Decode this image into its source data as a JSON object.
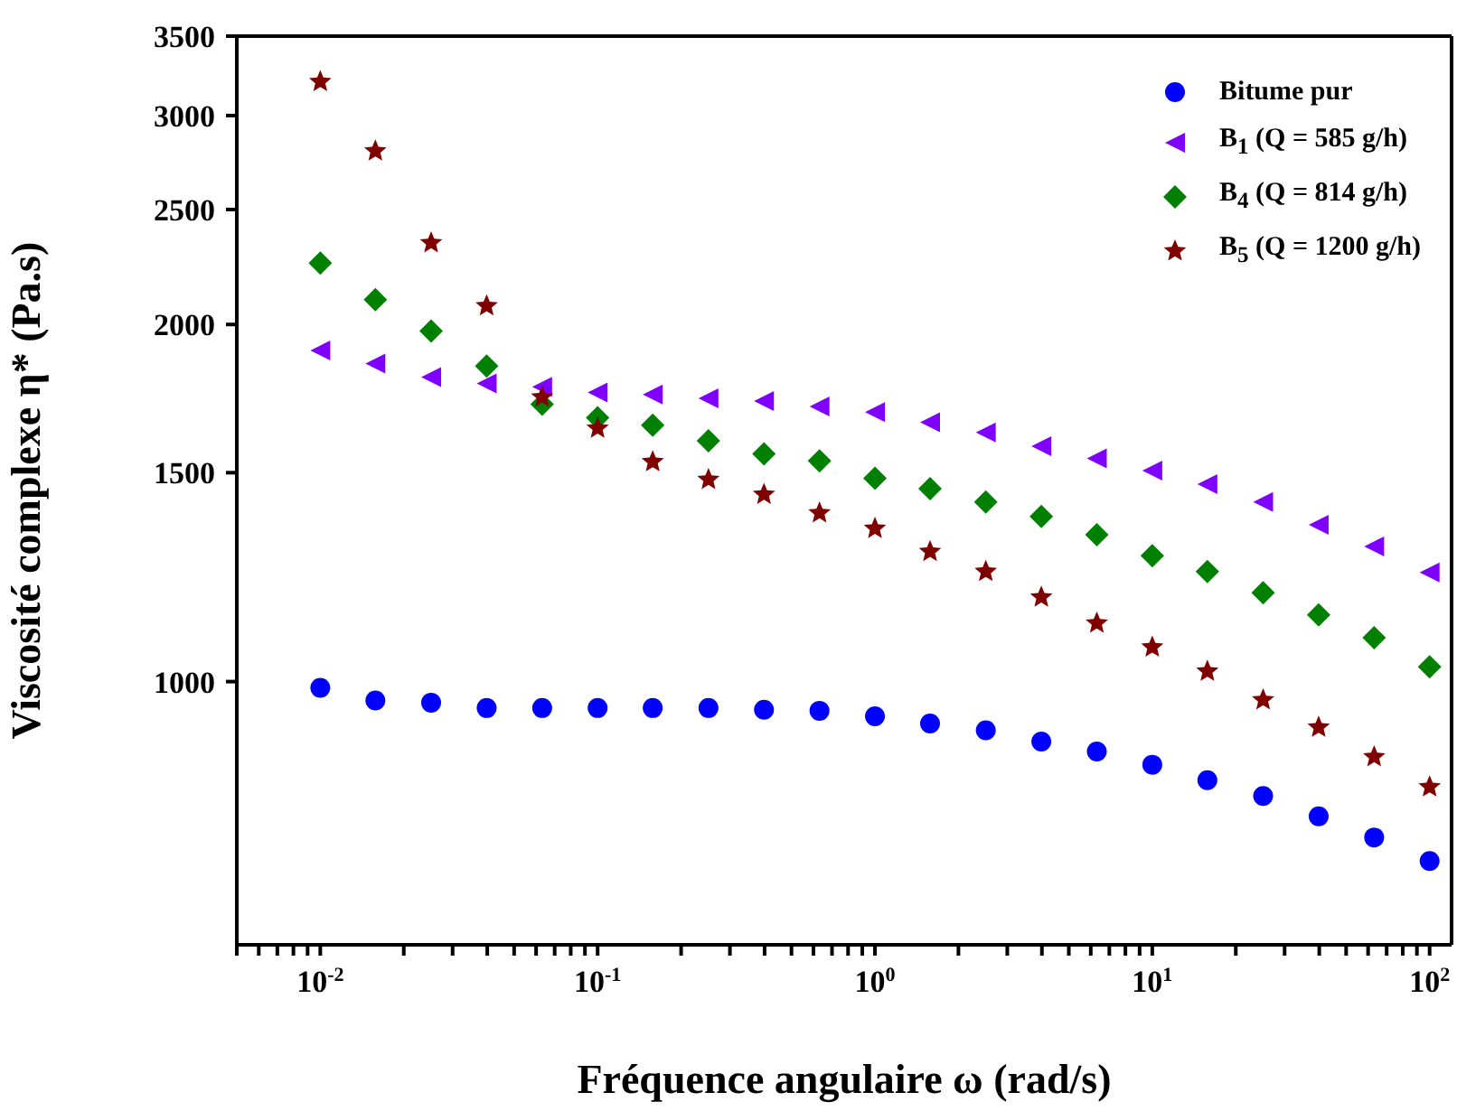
{
  "chart_data": {
    "type": "scatter",
    "xlabel": "Fréquence angulaire ω (rad/s)",
    "ylabel": "Viscosité complexe η* (Pa.s)",
    "log": "xy",
    "xlim": [
      0.005,
      120
    ],
    "ylim": [
      600,
      3500
    ],
    "xticks": [
      {
        "value": 0.005,
        "label": null
      },
      {
        "value": 0.006,
        "label": null
      },
      {
        "value": 0.007,
        "label": null
      },
      {
        "value": 0.008,
        "label": null
      },
      {
        "value": 0.009,
        "label": null
      },
      {
        "value": 0.01,
        "label": "10$^{-2}$"
      },
      {
        "value": 0.02,
        "label": null
      },
      {
        "value": 0.03,
        "label": null
      },
      {
        "value": 0.04,
        "label": null
      },
      {
        "value": 0.05,
        "label": null
      },
      {
        "value": 0.06,
        "label": null
      },
      {
        "value": 0.07,
        "label": null
      },
      {
        "value": 0.08,
        "label": null
      },
      {
        "value": 0.09,
        "label": null
      },
      {
        "value": 0.1,
        "label": "10$^{-1}$"
      },
      {
        "value": 0.2,
        "label": null
      },
      {
        "value": 0.3,
        "label": null
      },
      {
        "value": 0.4,
        "label": null
      },
      {
        "value": 0.5,
        "label": null
      },
      {
        "value": 0.6,
        "label": null
      },
      {
        "value": 0.7,
        "label": null
      },
      {
        "value": 0.8,
        "label": null
      },
      {
        "value": 0.9,
        "label": null
      },
      {
        "value": 1,
        "label": "10$^{0}$"
      },
      {
        "value": 2,
        "label": null
      },
      {
        "value": 3,
        "label": null
      },
      {
        "value": 4,
        "label": null
      },
      {
        "value": 5,
        "label": null
      },
      {
        "value": 6,
        "label": null
      },
      {
        "value": 7,
        "label": null
      },
      {
        "value": 8,
        "label": null
      },
      {
        "value": 9,
        "label": null
      },
      {
        "value": 10,
        "label": "10$^{1}$"
      },
      {
        "value": 20,
        "label": null
      },
      {
        "value": 30,
        "label": null
      },
      {
        "value": 40,
        "label": null
      },
      {
        "value": 50,
        "label": null
      },
      {
        "value": 60,
        "label": null
      },
      {
        "value": 70,
        "label": null
      },
      {
        "value": 80,
        "label": null
      },
      {
        "value": 90,
        "label": null
      },
      {
        "value": 100,
        "label": "10$^{2}$"
      }
    ],
    "yticks": [
      1000,
      1500,
      2000,
      2500,
      3000,
      3500
    ],
    "grid": false,
    "legend": "top right",
    "x": [
      0.01,
      0.0158,
      0.0251,
      0.0398,
      0.0631,
      0.1,
      0.158,
      0.251,
      0.398,
      0.631,
      1,
      1.58,
      2.51,
      3.98,
      6.31,
      10,
      15.8,
      25.1,
      39.8,
      63.1,
      100
    ],
    "series": [
      {
        "name": "Bitume pur",
        "color": "#0000ff",
        "marker": "circle",
        "values": [
          988,
          964,
          960,
          950,
          950,
          950,
          950,
          950,
          947,
          945,
          935,
          922,
          910,
          890,
          873,
          851,
          826,
          801,
          770,
          739,
          706
        ]
      },
      {
        "name": "B$_{1}$ (Q = 585 g/h)",
        "color": "#8000ff",
        "marker": "triangle",
        "values": [
          1902,
          1854,
          1806,
          1784,
          1772,
          1753,
          1746,
          1733,
          1724,
          1706,
          1687,
          1654,
          1622,
          1579,
          1542,
          1506,
          1467,
          1417,
          1356,
          1300,
          1236
        ]
      },
      {
        "name": "B$_{4}$ (Q = 814 g/h)",
        "color": "#008000",
        "marker": "diamond",
        "values": [
          2253,
          2099,
          1975,
          1845,
          1713,
          1669,
          1645,
          1596,
          1556,
          1535,
          1484,
          1454,
          1417,
          1378,
          1330,
          1277,
          1238,
          1188,
          1138,
          1089,
          1029
        ]
      },
      {
        "name": "B$_{5}$ (Q = 1200 g/h)",
        "color": "#800000",
        "marker": "star",
        "values": [
          3204,
          2800,
          2343,
          2073,
          1737,
          1635,
          1532,
          1480,
          1438,
          1387,
          1346,
          1287,
          1238,
          1178,
          1120,
          1069,
          1020,
          965,
          915,
          864,
          815
        ]
      }
    ]
  }
}
